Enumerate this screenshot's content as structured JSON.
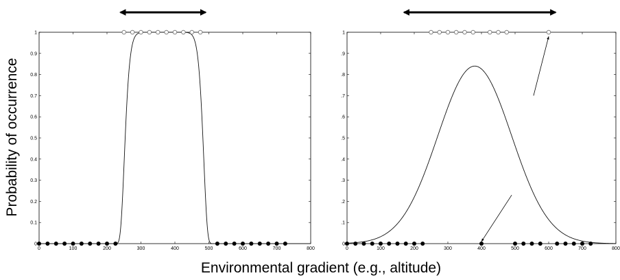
{
  "figure": {
    "ylabel": "Probability of occurrence",
    "xlabel": "Environmental gradient (e.g., altitude)"
  },
  "chart_data": [
    {
      "type": "scatter",
      "name": "left-panel",
      "xlim": [
        0,
        800
      ],
      "ylim": [
        0,
        1
      ],
      "x_ticks": [
        "0",
        "100",
        "200",
        "300",
        "400",
        "500",
        "600",
        "700",
        "800"
      ],
      "y_ticks": [
        "0",
        "0.1",
        "0.2",
        "0.3",
        "0.4",
        "0.5",
        "0.6",
        "0.7",
        "0.8",
        "0.9",
        "1"
      ],
      "curve": {
        "peak": 1.0,
        "center": 368,
        "half_width": 118,
        "steepness": 6
      },
      "presences": [
        250,
        275,
        300,
        325,
        350,
        375,
        400,
        425,
        450,
        475
      ],
      "absences": [
        0,
        25,
        50,
        75,
        100,
        125,
        150,
        175,
        200,
        225,
        525,
        550,
        575,
        600,
        625,
        650,
        675,
        700,
        725
      ],
      "range_arrow": [
        240,
        490
      ]
    },
    {
      "type": "scatter",
      "name": "right-panel",
      "xlim": [
        0,
        800
      ],
      "ylim": [
        0,
        1
      ],
      "x_ticks": [
        "0",
        "100",
        "200",
        "300",
        "400",
        "500",
        "600",
        "700",
        "800"
      ],
      "y_ticks": [
        "0",
        ".1",
        ".2",
        ".3",
        ".4",
        ".5",
        ".6",
        ".7",
        ".8",
        ".9",
        "1"
      ],
      "curve": {
        "peak": 0.84,
        "center": 380,
        "sigma": 110,
        "power": 2
      },
      "presences": [
        250,
        275,
        300,
        325,
        350,
        375,
        425,
        450,
        475,
        600
      ],
      "absences": [
        0,
        25,
        50,
        75,
        100,
        125,
        150,
        175,
        200,
        225,
        400,
        500,
        525,
        550,
        575,
        625,
        650,
        675,
        700,
        725
      ],
      "range_arrow": [
        170,
        620
      ],
      "pointer_arrows": [
        {
          "from": [
            555,
            0.7
          ],
          "to": [
            600,
            0.98
          ]
        },
        {
          "from": [
            490,
            0.23
          ],
          "to": [
            400,
            0.01
          ]
        }
      ]
    }
  ]
}
